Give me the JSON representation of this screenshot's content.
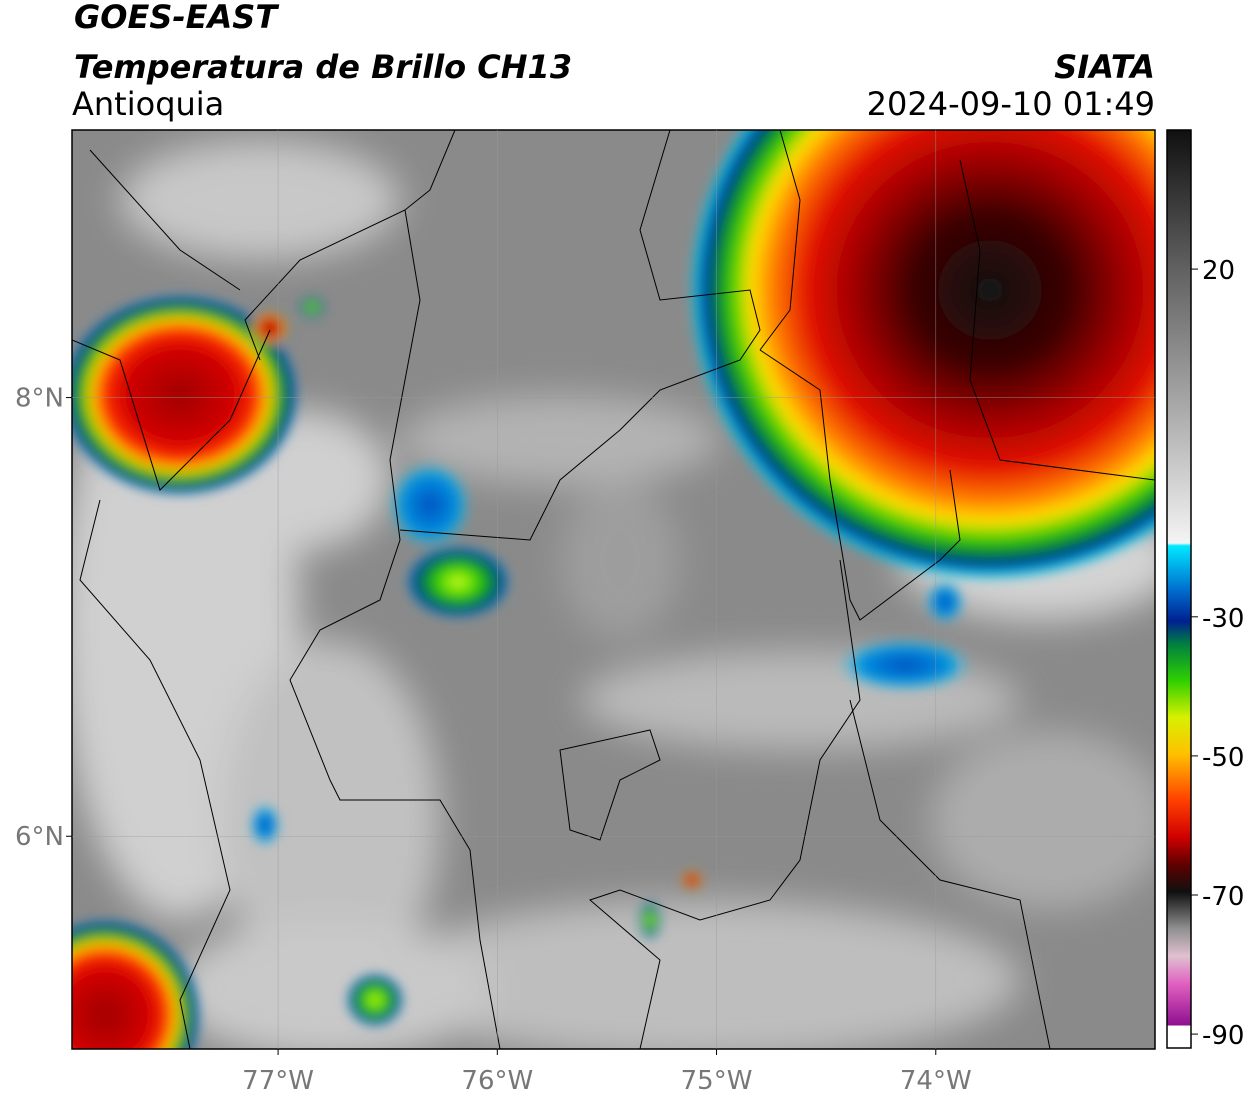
{
  "header": {
    "title": "GOES-EAST",
    "subtitle": "Temperatura de Brillo CH13",
    "region": "Antioquia",
    "source": "SIATA",
    "datetime": "2024-09-10 01:49"
  },
  "map": {
    "xlim": [
      -77.94,
      -73.0
    ],
    "ylim": [
      5.03,
      9.22
    ],
    "xticks": [
      {
        "value": -77,
        "label": "77°W"
      },
      {
        "value": -76,
        "label": "76°W"
      },
      {
        "value": -75,
        "label": "75°W"
      },
      {
        "value": -74,
        "label": "74°W"
      }
    ],
    "yticks": [
      {
        "value": 8,
        "label": "8°N"
      },
      {
        "value": 6,
        "label": "6°N"
      }
    ],
    "grid": true
  },
  "colorbar": {
    "lim": [
      -92,
      40
    ],
    "ticks": [
      20,
      -30,
      -50,
      -70,
      -90
    ]
  }
}
